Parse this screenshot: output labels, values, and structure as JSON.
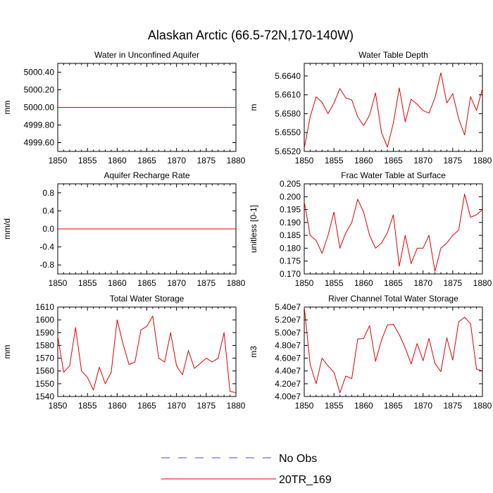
{
  "title": "Alaskan Arctic (66.5-72N,170-140W)",
  "legend": [
    {
      "name": "No Obs",
      "color": "#4b4bcc",
      "dash": true
    },
    {
      "name": "20TR_169",
      "color": "#dd0000",
      "dash": false
    }
  ],
  "chart_data": [
    {
      "type": "line",
      "title": "Water in Unconfined Aquifer",
      "ylabel": "mm",
      "xlim": [
        1850,
        1880
      ],
      "ylim": [
        4999.5,
        5000.5
      ],
      "xticks": [
        1850,
        1855,
        1860,
        1865,
        1870,
        1875,
        1880
      ],
      "yticks": [
        4999.6,
        4999.8,
        5000.0,
        5000.2,
        5000.4
      ],
      "ytick_labels": [
        "4999.60",
        "4999.80",
        "5000.00",
        "5000.20",
        "5000.40"
      ],
      "x": [
        1850,
        1880
      ],
      "series": [
        {
          "values": [
            5000.0,
            5000.0
          ],
          "color": "#dd0000"
        }
      ]
    },
    {
      "type": "line",
      "title": "Water Table Depth",
      "ylabel": "m",
      "xlim": [
        1850,
        1880
      ],
      "ylim": [
        5.652,
        5.666
      ],
      "xticks": [
        1850,
        1855,
        1860,
        1865,
        1870,
        1875,
        1880
      ],
      "yticks": [
        5.652,
        5.655,
        5.658,
        5.661,
        5.664
      ],
      "ytick_labels": [
        "5.6520",
        "5.6550",
        "5.6580",
        "5.6610",
        "5.6640"
      ],
      "x": [
        1850,
        1851,
        1852,
        1853,
        1854,
        1855,
        1856,
        1857,
        1858,
        1859,
        1860,
        1861,
        1862,
        1863,
        1864,
        1865,
        1866,
        1867,
        1868,
        1869,
        1870,
        1871,
        1872,
        1873,
        1874,
        1875,
        1876,
        1877,
        1878,
        1879,
        1880
      ],
      "series": [
        {
          "values": [
            5.6525,
            5.6575,
            5.6607,
            5.6598,
            5.658,
            5.6597,
            5.662,
            5.6605,
            5.6602,
            5.6575,
            5.6561,
            5.6578,
            5.6613,
            5.655,
            5.6527,
            5.6565,
            5.6621,
            5.6567,
            5.6603,
            5.6595,
            5.6585,
            5.6581,
            5.6605,
            5.6645,
            5.6597,
            5.6612,
            5.6572,
            5.6546,
            5.6607,
            5.6585,
            5.662
          ],
          "color": "#dd0000"
        }
      ]
    },
    {
      "type": "line",
      "title": "Aquifer Recharge Rate",
      "ylabel": "mm/d",
      "xlim": [
        1850,
        1880
      ],
      "ylim": [
        -1.0,
        1.0
      ],
      "xticks": [
        1850,
        1855,
        1860,
        1865,
        1870,
        1875,
        1880
      ],
      "yticks": [
        -0.8,
        -0.4,
        0.0,
        0.4,
        0.8
      ],
      "ytick_labels": [
        "-0.8",
        "-0.4",
        "0.0",
        "0.4",
        "0.8"
      ],
      "x": [
        1850,
        1880
      ],
      "series": [
        {
          "values": [
            0.0,
            0.0
          ],
          "color": "#dd0000"
        }
      ]
    },
    {
      "type": "line",
      "title": "Frac Water Table at Surface",
      "ylabel": "unitless [0-1]",
      "xlim": [
        1850,
        1880
      ],
      "ylim": [
        0.17,
        0.205
      ],
      "xticks": [
        1850,
        1855,
        1860,
        1865,
        1870,
        1875,
        1880
      ],
      "yticks": [
        0.17,
        0.175,
        0.18,
        0.185,
        0.19,
        0.195,
        0.2,
        0.205
      ],
      "ytick_labels": [
        "0.170",
        "0.175",
        "0.180",
        "0.185",
        "0.190",
        "0.195",
        "0.200",
        "0.205"
      ],
      "x": [
        1850,
        1851,
        1852,
        1853,
        1854,
        1855,
        1856,
        1857,
        1858,
        1859,
        1860,
        1861,
        1862,
        1863,
        1864,
        1865,
        1866,
        1867,
        1868,
        1869,
        1870,
        1871,
        1872,
        1873,
        1874,
        1875,
        1876,
        1877,
        1878,
        1879,
        1880
      ],
      "series": [
        {
          "values": [
            0.198,
            0.185,
            0.183,
            0.178,
            0.185,
            0.194,
            0.18,
            0.186,
            0.19,
            0.199,
            0.194,
            0.185,
            0.18,
            0.182,
            0.186,
            0.193,
            0.173,
            0.185,
            0.174,
            0.18,
            0.18,
            0.185,
            0.171,
            0.18,
            0.182,
            0.185,
            0.187,
            0.201,
            0.192,
            0.193,
            0.195
          ],
          "color": "#dd0000"
        }
      ]
    },
    {
      "type": "line",
      "title": "Total Water Storage",
      "ylabel": "mm",
      "xlim": [
        1850,
        1880
      ],
      "ylim": [
        1540,
        1610
      ],
      "xticks": [
        1850,
        1855,
        1860,
        1865,
        1870,
        1875,
        1880
      ],
      "yticks": [
        1540,
        1550,
        1560,
        1570,
        1580,
        1590,
        1600,
        1610
      ],
      "ytick_labels": [
        "1540",
        "1550",
        "1560",
        "1570",
        "1580",
        "1590",
        "1600",
        "1610"
      ],
      "x": [
        1850,
        1851,
        1852,
        1853,
        1854,
        1855,
        1856,
        1857,
        1858,
        1859,
        1860,
        1861,
        1862,
        1863,
        1864,
        1865,
        1866,
        1867,
        1868,
        1869,
        1870,
        1871,
        1872,
        1873,
        1874,
        1875,
        1876,
        1877,
        1878,
        1879,
        1880
      ],
      "series": [
        {
          "values": [
            1587,
            1559,
            1564,
            1594,
            1560,
            1555,
            1545,
            1563,
            1550,
            1559,
            1600,
            1581,
            1565,
            1567,
            1592,
            1595,
            1603,
            1570,
            1567,
            1590,
            1564,
            1557,
            1576,
            1562,
            1566,
            1570,
            1567,
            1570,
            1590,
            1544,
            1543
          ],
          "color": "#dd0000"
        }
      ]
    },
    {
      "type": "line",
      "title": "River Channel Total Water Storage",
      "ylabel": "m3",
      "xlim": [
        1850,
        1880
      ],
      "ylim": [
        40000000.0,
        54000000.0
      ],
      "xticks": [
        1850,
        1855,
        1860,
        1865,
        1870,
        1875,
        1880
      ],
      "yticks": [
        40000000.0,
        42000000.0,
        44000000.0,
        46000000.0,
        48000000.0,
        50000000.0,
        52000000.0,
        54000000.0
      ],
      "ytick_labels": [
        "4.00e7",
        "4.20e7",
        "4.40e7",
        "4.60e7",
        "4.80e7",
        "5.00e7",
        "5.20e7",
        "5.40e7"
      ],
      "x": [
        1850,
        1851,
        1852,
        1853,
        1854,
        1855,
        1856,
        1857,
        1858,
        1859,
        1860,
        1861,
        1862,
        1863,
        1864,
        1865,
        1866,
        1867,
        1868,
        1869,
        1870,
        1871,
        1872,
        1873,
        1874,
        1875,
        1876,
        1877,
        1878,
        1879,
        1880
      ],
      "series": [
        {
          "values": [
            54000000.0,
            45000000.0,
            42000000.0,
            46000000.0,
            44800000.0,
            43800000.0,
            40600000.0,
            43200000.0,
            42800000.0,
            49000000.0,
            49100000.0,
            51100000.0,
            45500000.0,
            48800000.0,
            51200000.0,
            51300000.0,
            49700000.0,
            47600000.0,
            45100000.0,
            48300000.0,
            45600000.0,
            49100000.0,
            45200000.0,
            43900000.0,
            49200000.0,
            45700000.0,
            51700000.0,
            52400000.0,
            51400000.0,
            44300000.0,
            44000000.0
          ],
          "color": "#dd0000"
        }
      ]
    }
  ]
}
